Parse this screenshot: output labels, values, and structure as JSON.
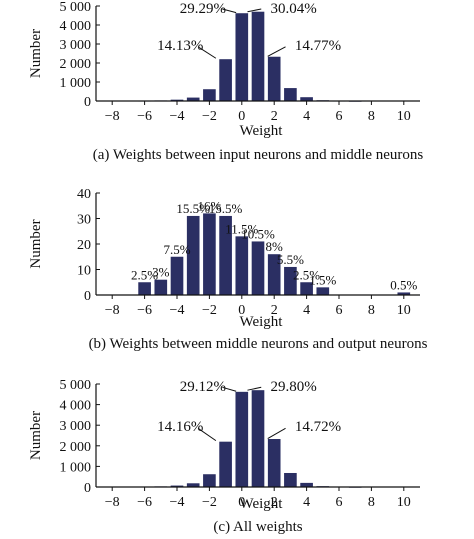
{
  "colors": {
    "bar": "#2b2f63",
    "axis": "#111111",
    "text": "#111111"
  },
  "chart_data": [
    {
      "type": "bar",
      "caption": "(a) Weights between input neurons and middle neurons",
      "xlabel": "Weight",
      "ylabel": "Number",
      "xlim": [
        -9,
        11
      ],
      "ylim": [
        0,
        5000
      ],
      "xticks": [
        -8,
        -6,
        -4,
        -2,
        0,
        2,
        4,
        6,
        8,
        10
      ],
      "xtick_labels": [
        "−8",
        "−6",
        "−4",
        "−2",
        "0",
        "2",
        "4",
        "6",
        "8",
        "10"
      ],
      "yticks": [
        0,
        1000,
        2000,
        3000,
        4000,
        5000
      ],
      "ytick_labels": [
        "0",
        "1 000",
        "2 000",
        "3 000",
        "4 000",
        "5 000"
      ],
      "x": [
        -8,
        -7,
        -6,
        -5,
        -4,
        -3,
        -2,
        -1,
        0,
        1,
        2,
        3,
        4,
        5,
        6,
        7,
        8,
        9,
        10
      ],
      "values": [
        0,
        0,
        15,
        30,
        70,
        180,
        620,
        2200,
        4620,
        4700,
        2330,
        680,
        200,
        40,
        15,
        5,
        0,
        0,
        0
      ],
      "annotations": [
        {
          "text": "29.29%",
          "x": -2.4,
          "y": 4900,
          "pointer": {
            "x1": -1.2,
            "y1": 4840,
            "x2": -0.35,
            "y2": 4650
          }
        },
        {
          "text": "30.04%",
          "x": 3.2,
          "y": 4900,
          "pointer": {
            "x1": 1.2,
            "y1": 4840,
            "x2": 0.35,
            "y2": 4700
          }
        },
        {
          "text": "14.13%",
          "x": -3.8,
          "y": 2950,
          "pointer": {
            "x1": -2.7,
            "y1": 2850,
            "x2": -1.6,
            "y2": 2250
          }
        },
        {
          "text": "14.77%",
          "x": 4.7,
          "y": 2950,
          "pointer": {
            "x1": 2.7,
            "y1": 2850,
            "x2": 1.6,
            "y2": 2350
          }
        }
      ]
    },
    {
      "type": "bar",
      "caption": "(b) Weights between middle neurons and output neurons",
      "xlabel": "Weight",
      "ylabel": "Number",
      "xlim": [
        -9,
        11
      ],
      "ylim": [
        0,
        40
      ],
      "xticks": [
        -8,
        -6,
        -4,
        -2,
        0,
        2,
        4,
        6,
        8,
        10
      ],
      "xtick_labels": [
        "−8",
        "−6",
        "−4",
        "−2",
        "0",
        "2",
        "4",
        "6",
        "8",
        "10"
      ],
      "yticks": [
        0,
        10,
        20,
        30,
        40
      ],
      "ytick_labels": [
        "0",
        "10",
        "20",
        "30",
        "40"
      ],
      "x": [
        -8,
        -7,
        -6,
        -5,
        -4,
        -3,
        -2,
        -1,
        0,
        1,
        2,
        3,
        4,
        5,
        6,
        7,
        8,
        9,
        10
      ],
      "values": [
        0,
        0,
        5,
        6,
        15,
        31,
        32,
        31,
        23,
        21,
        16,
        11,
        5,
        3,
        0,
        0,
        0,
        0,
        1
      ],
      "bar_labels": [
        "",
        "",
        "2.5%",
        "3%",
        "7.5%",
        "15.5%",
        "16%",
        "15.5%",
        "11.5%",
        "10.5%",
        "8%",
        "5.5%",
        "2.5%",
        "1.5%",
        "",
        "",
        "",
        "",
        "0.5%"
      ],
      "annotations": []
    },
    {
      "type": "bar",
      "caption": "(c) All weights",
      "xlabel": "Weight",
      "ylabel": "Number",
      "xlim": [
        -9,
        11
      ],
      "ylim": [
        0,
        5000
      ],
      "xticks": [
        -8,
        -6,
        -4,
        -2,
        0,
        2,
        4,
        6,
        8,
        10
      ],
      "xtick_labels": [
        "−8",
        "−6",
        "−4",
        "−2",
        "0",
        "2",
        "4",
        "6",
        "8",
        "10"
      ],
      "yticks": [
        0,
        1000,
        2000,
        3000,
        4000,
        5000
      ],
      "ytick_labels": [
        "0",
        "1 000",
        "2 000",
        "3 000",
        "4 000",
        "5 000"
      ],
      "x": [
        -8,
        -7,
        -6,
        -5,
        -4,
        -3,
        -2,
        -1,
        0,
        1,
        2,
        3,
        4,
        5,
        6,
        7,
        8,
        9,
        10
      ],
      "values": [
        0,
        0,
        15,
        30,
        70,
        180,
        620,
        2200,
        4620,
        4700,
        2330,
        680,
        200,
        40,
        15,
        5,
        0,
        0,
        0
      ],
      "annotations": [
        {
          "text": "29.12%",
          "x": -2.4,
          "y": 4900,
          "pointer": {
            "x1": -1.2,
            "y1": 4840,
            "x2": -0.35,
            "y2": 4650
          }
        },
        {
          "text": "29.80%",
          "x": 3.2,
          "y": 4900,
          "pointer": {
            "x1": 1.2,
            "y1": 4840,
            "x2": 0.35,
            "y2": 4700
          }
        },
        {
          "text": "14.16%",
          "x": -3.8,
          "y": 2950,
          "pointer": {
            "x1": -2.7,
            "y1": 2850,
            "x2": -1.6,
            "y2": 2250
          }
        },
        {
          "text": "14.72%",
          "x": 4.7,
          "y": 2950,
          "pointer": {
            "x1": 2.7,
            "y1": 2850,
            "x2": 1.6,
            "y2": 2350
          }
        }
      ]
    }
  ]
}
